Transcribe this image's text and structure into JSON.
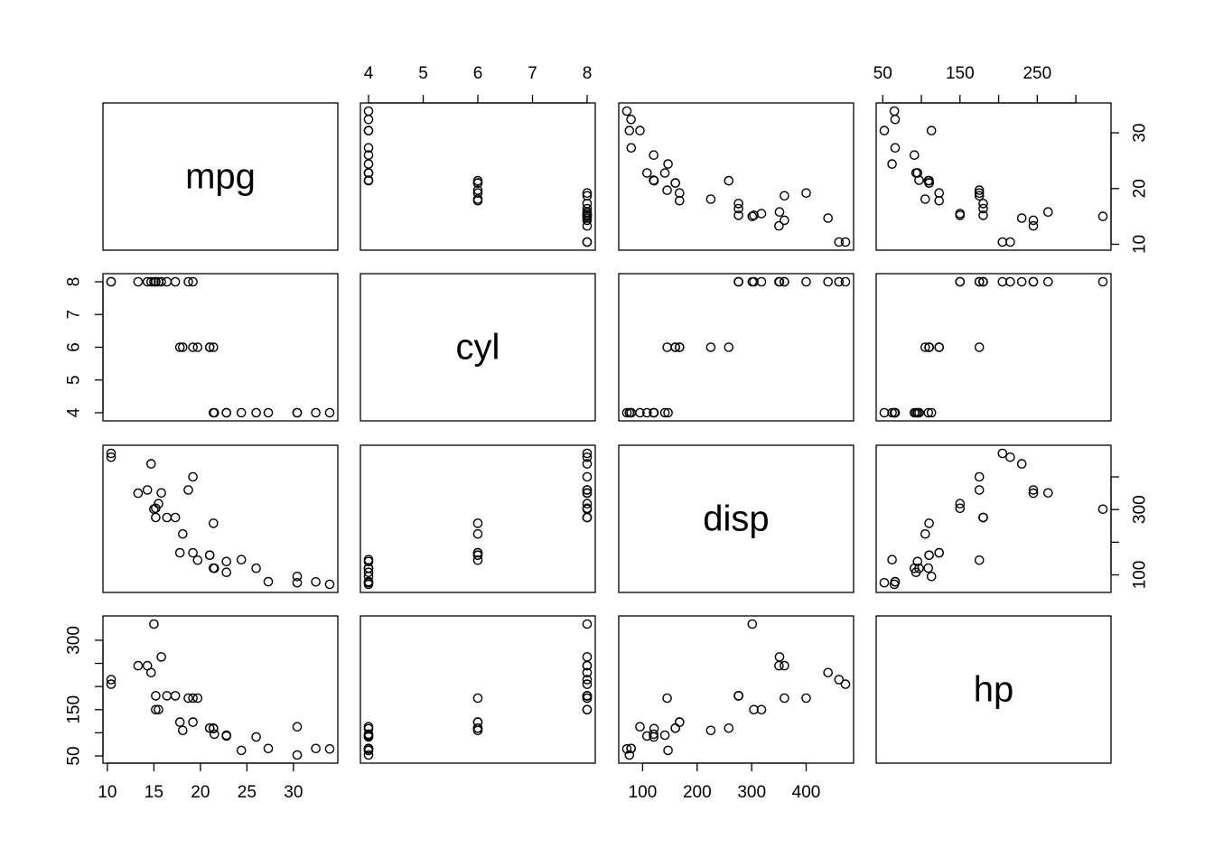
{
  "chart_data": {
    "type": "scatter",
    "variables": [
      {
        "key": "mpg",
        "label": "mpg",
        "range": [
          10.4,
          33.9
        ],
        "ticks": [
          10,
          15,
          20,
          25,
          30
        ],
        "alt_ticks": [
          10,
          20,
          30
        ]
      },
      {
        "key": "cyl",
        "label": "cyl",
        "range": [
          4,
          8
        ],
        "ticks": [
          4,
          5,
          6,
          7,
          8
        ],
        "alt_ticks": [
          4,
          5,
          6,
          7,
          8
        ]
      },
      {
        "key": "disp",
        "label": "disp",
        "range": [
          71.1,
          472
        ],
        "ticks": [
          100,
          200,
          300,
          400
        ],
        "alt_ticks": [
          100,
          200,
          300,
          400
        ],
        "alt_tick_labels": [
          "100",
          "",
          "300",
          ""
        ]
      },
      {
        "key": "hp",
        "label": "hp",
        "range": [
          52,
          335
        ],
        "ticks": [
          50,
          100,
          150,
          200,
          250,
          300
        ],
        "tick_labels": [
          "50",
          "",
          "150",
          "",
          "250",
          ""
        ],
        "alt_ticks": [
          50,
          100,
          150,
          200,
          250,
          300
        ],
        "alt_tick_labels": [
          "50",
          "",
          "150",
          "",
          "",
          "300"
        ]
      }
    ],
    "axis_placement": {
      "top": [
        "cyl",
        "hp"
      ],
      "bottom": [
        "mpg",
        "disp"
      ],
      "left": [
        "cyl",
        "hp"
      ],
      "right": [
        "mpg",
        "disp"
      ]
    },
    "points": [
      {
        "mpg": 21.0,
        "cyl": 6,
        "disp": 160.0,
        "hp": 110
      },
      {
        "mpg": 21.0,
        "cyl": 6,
        "disp": 160.0,
        "hp": 110
      },
      {
        "mpg": 22.8,
        "cyl": 4,
        "disp": 108.0,
        "hp": 93
      },
      {
        "mpg": 21.4,
        "cyl": 6,
        "disp": 258.0,
        "hp": 110
      },
      {
        "mpg": 18.7,
        "cyl": 8,
        "disp": 360.0,
        "hp": 175
      },
      {
        "mpg": 18.1,
        "cyl": 6,
        "disp": 225.0,
        "hp": 105
      },
      {
        "mpg": 14.3,
        "cyl": 8,
        "disp": 360.0,
        "hp": 245
      },
      {
        "mpg": 24.4,
        "cyl": 4,
        "disp": 146.7,
        "hp": 62
      },
      {
        "mpg": 22.8,
        "cyl": 4,
        "disp": 140.8,
        "hp": 95
      },
      {
        "mpg": 19.2,
        "cyl": 6,
        "disp": 167.6,
        "hp": 123
      },
      {
        "mpg": 17.8,
        "cyl": 6,
        "disp": 167.6,
        "hp": 123
      },
      {
        "mpg": 16.4,
        "cyl": 8,
        "disp": 275.8,
        "hp": 180
      },
      {
        "mpg": 17.3,
        "cyl": 8,
        "disp": 275.8,
        "hp": 180
      },
      {
        "mpg": 15.2,
        "cyl": 8,
        "disp": 275.8,
        "hp": 180
      },
      {
        "mpg": 10.4,
        "cyl": 8,
        "disp": 472.0,
        "hp": 205
      },
      {
        "mpg": 10.4,
        "cyl": 8,
        "disp": 460.0,
        "hp": 215
      },
      {
        "mpg": 14.7,
        "cyl": 8,
        "disp": 440.0,
        "hp": 230
      },
      {
        "mpg": 32.4,
        "cyl": 4,
        "disp": 78.7,
        "hp": 66
      },
      {
        "mpg": 30.4,
        "cyl": 4,
        "disp": 75.7,
        "hp": 52
      },
      {
        "mpg": 33.9,
        "cyl": 4,
        "disp": 71.1,
        "hp": 65
      },
      {
        "mpg": 21.5,
        "cyl": 4,
        "disp": 120.1,
        "hp": 97
      },
      {
        "mpg": 15.5,
        "cyl": 8,
        "disp": 318.0,
        "hp": 150
      },
      {
        "mpg": 15.2,
        "cyl": 8,
        "disp": 304.0,
        "hp": 150
      },
      {
        "mpg": 13.3,
        "cyl": 8,
        "disp": 350.0,
        "hp": 245
      },
      {
        "mpg": 19.2,
        "cyl": 8,
        "disp": 400.0,
        "hp": 175
      },
      {
        "mpg": 27.3,
        "cyl": 4,
        "disp": 79.0,
        "hp": 66
      },
      {
        "mpg": 26.0,
        "cyl": 4,
        "disp": 120.3,
        "hp": 91
      },
      {
        "mpg": 30.4,
        "cyl": 4,
        "disp": 95.1,
        "hp": 113
      },
      {
        "mpg": 15.8,
        "cyl": 8,
        "disp": 351.0,
        "hp": 264
      },
      {
        "mpg": 19.7,
        "cyl": 6,
        "disp": 145.0,
        "hp": 175
      },
      {
        "mpg": 15.0,
        "cyl": 8,
        "disp": 301.0,
        "hp": 335
      },
      {
        "mpg": 21.4,
        "cyl": 4,
        "disp": 121.0,
        "hp": 109
      }
    ]
  }
}
